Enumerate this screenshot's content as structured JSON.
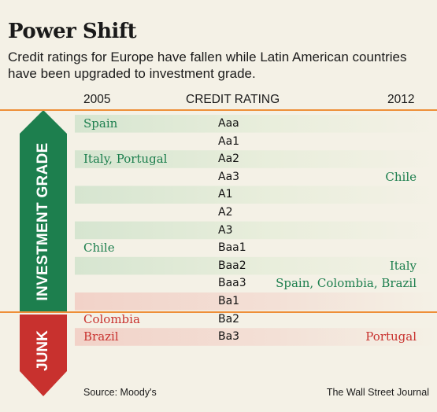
{
  "title": "Power Shift",
  "subtitle": "Credit ratings for Europe have fallen while Latin American countries have been upgraded to investment grade.",
  "columns": {
    "left": "2005",
    "middle": "CREDIT RATING",
    "right": "2012"
  },
  "bands": {
    "investment": "INVESTMENT GRADE",
    "junk": "JUNK"
  },
  "source": "Source: Moody's",
  "publisher": "The Wall Street Journal",
  "colors": {
    "background": "#f4f1e6",
    "investment_green": "#1d7f4e",
    "junk_red": "#c8312e",
    "rule_orange": "#ee8f38"
  },
  "chart_data": {
    "type": "table",
    "title": "Power Shift",
    "columns": [
      "2005",
      "CREDIT RATING",
      "2012"
    ],
    "rows": [
      {
        "rating": "Aaa",
        "grade": "investment",
        "y2005": "Spain",
        "y2012": ""
      },
      {
        "rating": "Aa1",
        "grade": "investment",
        "y2005": "",
        "y2012": ""
      },
      {
        "rating": "Aa2",
        "grade": "investment",
        "y2005": "Italy, Portugal",
        "y2012": ""
      },
      {
        "rating": "Aa3",
        "grade": "investment",
        "y2005": "",
        "y2012": "Chile"
      },
      {
        "rating": "A1",
        "grade": "investment",
        "y2005": "",
        "y2012": ""
      },
      {
        "rating": "A2",
        "grade": "investment",
        "y2005": "",
        "y2012": ""
      },
      {
        "rating": "A3",
        "grade": "investment",
        "y2005": "",
        "y2012": ""
      },
      {
        "rating": "Baa1",
        "grade": "investment",
        "y2005": "Chile",
        "y2012": ""
      },
      {
        "rating": "Baa2",
        "grade": "investment",
        "y2005": "",
        "y2012": "Italy"
      },
      {
        "rating": "Baa3",
        "grade": "investment",
        "y2005": "",
        "y2012": "Spain, Colombia, Brazil"
      },
      {
        "rating": "Ba1",
        "grade": "junk",
        "y2005": "",
        "y2012": ""
      },
      {
        "rating": "Ba2",
        "grade": "junk",
        "y2005": "Colombia",
        "y2012": ""
      },
      {
        "rating": "Ba3",
        "grade": "junk",
        "y2005": "Brazil",
        "y2012": "Portugal"
      }
    ]
  }
}
